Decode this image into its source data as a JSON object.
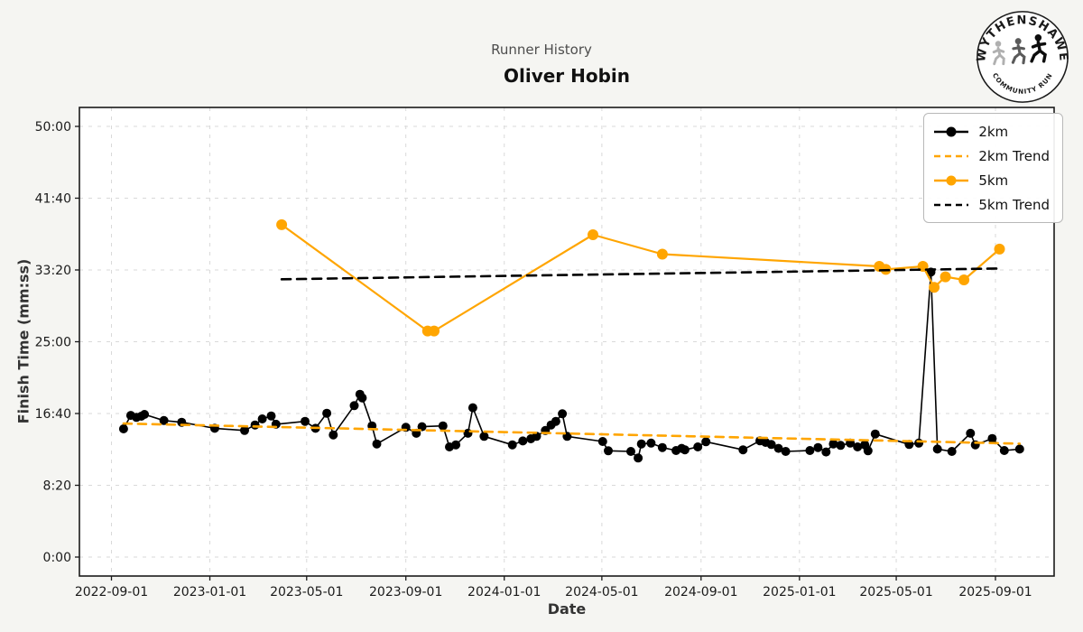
{
  "header": {
    "suptitle": "Runner History",
    "title": "Oliver Hobin"
  },
  "logo": {
    "top_text": "WYTHENSHAWE",
    "bottom_text": "COMMUNITY RUN"
  },
  "colors": {
    "accent_orange": "#FFA500",
    "series_black": "#000000",
    "grid": "#d9d9d9",
    "figure_bg": "#f5f5f2",
    "axes_bg": "#ffffff"
  },
  "chart_data": {
    "type": "line",
    "suptitle": "Runner History",
    "title": "Oliver Hobin",
    "xlabel": "Date",
    "ylabel": "Finish Time (mm:ss)",
    "grid": "dashed, light gray, on",
    "legend_position": "upper right",
    "x_ticks": [
      "2022-09-01",
      "2023-01-01",
      "2023-05-01",
      "2023-09-01",
      "2024-01-01",
      "2024-05-01",
      "2024-09-01",
      "2025-01-01",
      "2025-05-01",
      "2025-09-01"
    ],
    "y_ticks": [
      "0:00",
      "8:20",
      "16:40",
      "25:00",
      "33:20",
      "41:40",
      "50:00"
    ],
    "ylim_mmss": [
      "-2:12",
      "52:30"
    ],
    "legend": [
      {
        "label": "2km",
        "color": "#000000",
        "dash": null,
        "marker": true
      },
      {
        "label": "2km Trend",
        "color": "#FFA500",
        "dash": "7 5",
        "marker": false
      },
      {
        "label": "5km",
        "color": "#FFA500",
        "dash": null,
        "marker": true
      },
      {
        "label": "5km Trend",
        "color": "#000000",
        "dash": "7 5",
        "marker": false
      }
    ],
    "series": [
      {
        "name": "2km",
        "color": "#000000",
        "marker": true,
        "marker_radius": 5,
        "line_width": 1.6,
        "dash": null,
        "points": [
          [
            "2022-09-16",
            "14:53"
          ],
          [
            "2022-09-25",
            "16:27"
          ],
          [
            "2022-10-02",
            "16:13"
          ],
          [
            "2022-10-08",
            "16:21"
          ],
          [
            "2022-10-12",
            "16:34"
          ],
          [
            "2022-11-05",
            "15:51"
          ],
          [
            "2022-11-27",
            "15:39"
          ],
          [
            "2023-01-07",
            "14:57"
          ],
          [
            "2023-02-13",
            "14:42"
          ],
          [
            "2023-02-26",
            "15:20"
          ],
          [
            "2023-03-07",
            "16:02"
          ],
          [
            "2023-03-18",
            "16:23"
          ],
          [
            "2023-03-24",
            "15:25"
          ],
          [
            "2023-04-29",
            "15:45"
          ],
          [
            "2023-05-12",
            "14:57"
          ],
          [
            "2023-05-26",
            "16:42"
          ],
          [
            "2023-06-03",
            "14:11"
          ],
          [
            "2023-06-29",
            "17:35"
          ],
          [
            "2023-07-06",
            "18:54"
          ],
          [
            "2023-07-09",
            "18:29"
          ],
          [
            "2023-07-21",
            "15:14"
          ],
          [
            "2023-07-27",
            "13:08"
          ],
          [
            "2023-09-01",
            "15:04"
          ],
          [
            "2023-09-14",
            "14:22"
          ],
          [
            "2023-09-21",
            "15:08"
          ],
          [
            "2023-10-17",
            "15:14"
          ],
          [
            "2023-10-25",
            "12:47"
          ],
          [
            "2023-11-02",
            "13:02"
          ],
          [
            "2023-11-17",
            "14:22"
          ],
          [
            "2023-11-23",
            "17:20"
          ],
          [
            "2023-12-07",
            "14:01"
          ],
          [
            "2024-01-11",
            "13:02"
          ],
          [
            "2024-01-24",
            "13:29"
          ],
          [
            "2024-02-03",
            "13:44"
          ],
          [
            "2024-02-10",
            "14:01"
          ],
          [
            "2024-02-21",
            "14:42"
          ],
          [
            "2024-02-28",
            "15:20"
          ],
          [
            "2024-03-05",
            "15:45"
          ],
          [
            "2024-03-13",
            "16:38"
          ],
          [
            "2024-03-19",
            "14:01"
          ],
          [
            "2024-05-02",
            "13:25"
          ],
          [
            "2024-05-09",
            "12:20"
          ],
          [
            "2024-06-06",
            "12:16"
          ],
          [
            "2024-06-15",
            "11:30"
          ],
          [
            "2024-06-19",
            "13:08"
          ],
          [
            "2024-07-01",
            "13:14"
          ],
          [
            "2024-07-15",
            "12:43"
          ],
          [
            "2024-08-01",
            "12:22"
          ],
          [
            "2024-08-08",
            "12:37"
          ],
          [
            "2024-08-12",
            "12:27"
          ],
          [
            "2024-08-28",
            "12:47"
          ],
          [
            "2024-09-07",
            "13:23"
          ],
          [
            "2024-10-23",
            "12:27"
          ],
          [
            "2024-11-13",
            "13:30"
          ],
          [
            "2024-11-20",
            "13:19"
          ],
          [
            "2024-11-27",
            "13:04"
          ],
          [
            "2024-12-06",
            "12:37"
          ],
          [
            "2024-12-15",
            "12:16"
          ],
          [
            "2025-01-14",
            "12:22"
          ],
          [
            "2025-01-24",
            "12:43"
          ],
          [
            "2025-02-03",
            "12:12"
          ],
          [
            "2025-02-12",
            "13:08"
          ],
          [
            "2025-02-21",
            "12:58"
          ],
          [
            "2025-03-05",
            "13:14"
          ],
          [
            "2025-03-14",
            "12:47"
          ],
          [
            "2025-03-23",
            "13:02"
          ],
          [
            "2025-03-27",
            "12:20"
          ],
          [
            "2025-04-05",
            "14:17"
          ],
          [
            "2025-05-17",
            "13:04"
          ],
          [
            "2025-05-29",
            "13:14"
          ],
          [
            "2025-06-13",
            "33:05"
          ],
          [
            "2025-06-21",
            "12:32"
          ],
          [
            "2025-07-09",
            "12:16"
          ],
          [
            "2025-08-01",
            "14:22"
          ],
          [
            "2025-08-07",
            "13:02"
          ],
          [
            "2025-08-28",
            "13:46"
          ],
          [
            "2025-09-12",
            "12:22"
          ],
          [
            "2025-10-01",
            "12:32"
          ]
        ]
      },
      {
        "name": "2km Trend",
        "color": "#FFA500",
        "marker": false,
        "line_width": 2.6,
        "dash": "9 7",
        "points": [
          [
            "2022-09-16",
            "15:30"
          ],
          [
            "2025-10-01",
            "13:10"
          ]
        ]
      },
      {
        "name": "5km",
        "color": "#FFA500",
        "marker": true,
        "marker_radius": 6,
        "line_width": 2.2,
        "dash": null,
        "points": [
          [
            "2023-03-31",
            "38:35"
          ],
          [
            "2023-09-28",
            "26:15"
          ],
          [
            "2023-10-06",
            "26:15"
          ],
          [
            "2024-04-20",
            "37:25"
          ],
          [
            "2024-07-15",
            "35:10"
          ],
          [
            "2025-04-10",
            "33:45"
          ],
          [
            "2025-04-18",
            "33:24"
          ],
          [
            "2025-06-03",
            "33:45"
          ],
          [
            "2025-06-17",
            "31:19"
          ],
          [
            "2025-07-01",
            "32:32"
          ],
          [
            "2025-07-24",
            "32:11"
          ],
          [
            "2025-09-06",
            "35:45"
          ]
        ]
      },
      {
        "name": "5km Trend",
        "color": "#000000",
        "marker": false,
        "line_width": 2.6,
        "dash": "10 7",
        "points": [
          [
            "2023-03-31",
            "32:15"
          ],
          [
            "2025-09-06",
            "33:30"
          ]
        ]
      }
    ]
  }
}
